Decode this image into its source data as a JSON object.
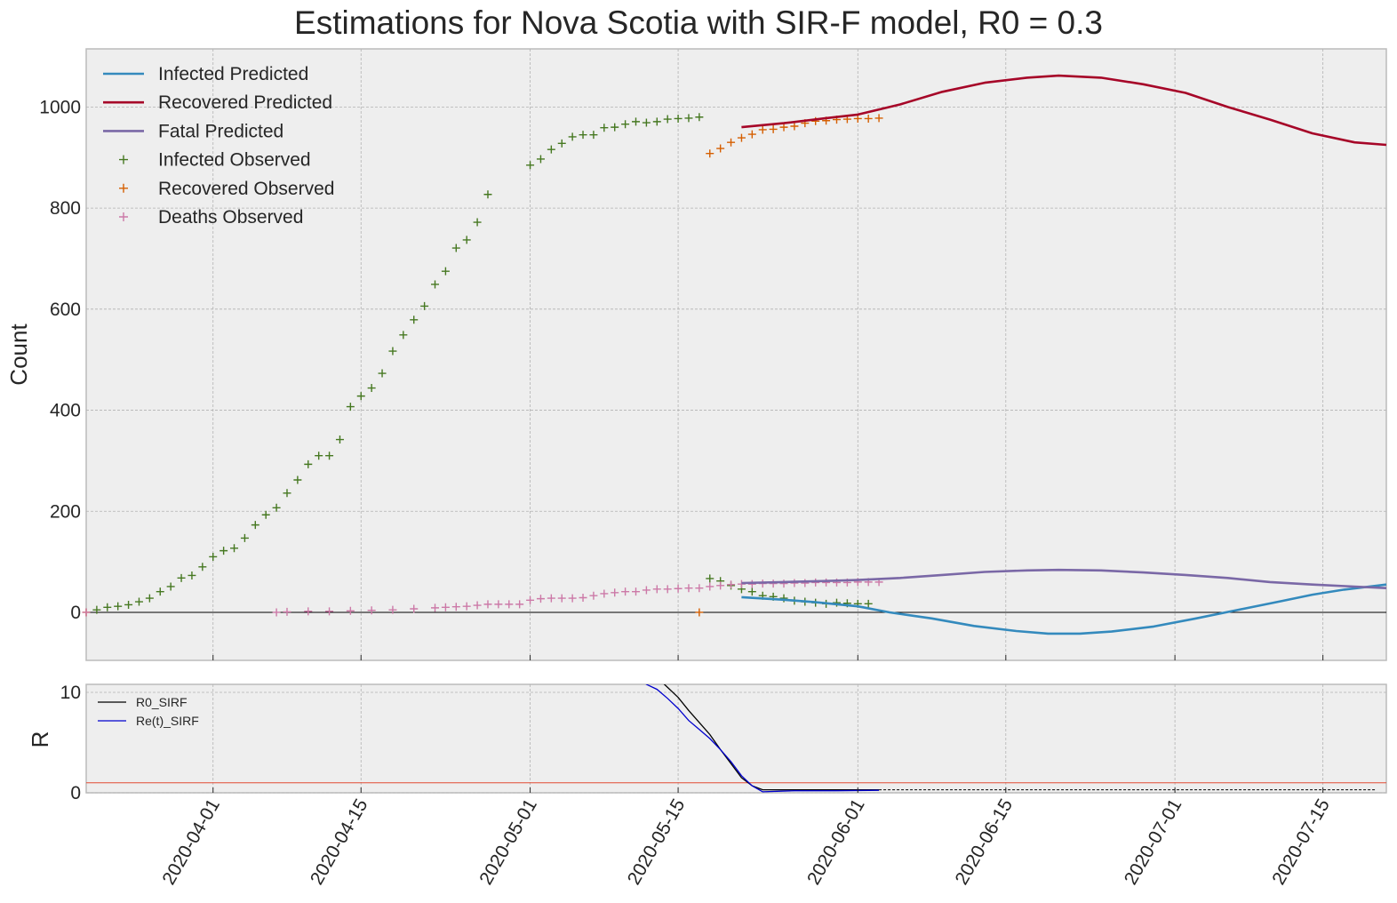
{
  "chart_data": [
    {
      "type": "line",
      "title": "Estimations for Nova Scotia with SIR-F model, R0 = 0.3",
      "ylabel": "Count",
      "ylim": [
        -95,
        1115
      ],
      "yticks": [
        0,
        200,
        400,
        600,
        800,
        1000
      ],
      "x_date_range": [
        "2020-03-20",
        "2020-07-21"
      ],
      "xticks": [
        "2020-04-01",
        "2020-04-15",
        "2020-05-01",
        "2020-05-15",
        "2020-06-01",
        "2020-06-15",
        "2020-07-01",
        "2020-07-15"
      ],
      "grid": true,
      "legend_position": "upper-left",
      "series": [
        {
          "name": "Infected Predicted",
          "kind": "line",
          "color": "#348ABD",
          "points": [
            [
              "2020-05-21",
              30
            ],
            [
              "2020-05-25",
              25
            ],
            [
              "2020-05-28",
              20
            ],
            [
              "2020-06-01",
              12
            ],
            [
              "2020-06-04",
              0
            ],
            [
              "2020-06-08",
              -12
            ],
            [
              "2020-06-12",
              -27
            ],
            [
              "2020-06-16",
              -37
            ],
            [
              "2020-06-19",
              -42
            ],
            [
              "2020-06-22",
              -42
            ],
            [
              "2020-06-25",
              -38
            ],
            [
              "2020-06-29",
              -28
            ],
            [
              "2020-07-03",
              -12
            ],
            [
              "2020-07-07",
              5
            ],
            [
              "2020-07-11",
              22
            ],
            [
              "2020-07-14",
              35
            ],
            [
              "2020-07-17",
              45
            ],
            [
              "2020-07-21",
              55
            ]
          ]
        },
        {
          "name": "Recovered Predicted",
          "kind": "line",
          "color": "#A60628",
          "points": [
            [
              "2020-05-21",
              960
            ],
            [
              "2020-05-25",
              968
            ],
            [
              "2020-05-29",
              978
            ],
            [
              "2020-06-01",
              985
            ],
            [
              "2020-06-05",
              1005
            ],
            [
              "2020-06-09",
              1030
            ],
            [
              "2020-06-13",
              1048
            ],
            [
              "2020-06-17",
              1058
            ],
            [
              "2020-06-20",
              1062
            ],
            [
              "2020-06-24",
              1058
            ],
            [
              "2020-06-28",
              1045
            ],
            [
              "2020-07-02",
              1028
            ],
            [
              "2020-07-06",
              1000
            ],
            [
              "2020-07-10",
              975
            ],
            [
              "2020-07-14",
              948
            ],
            [
              "2020-07-18",
              930
            ],
            [
              "2020-07-21",
              925
            ]
          ]
        },
        {
          "name": "Fatal Predicted",
          "kind": "line",
          "color": "#7A68A6",
          "points": [
            [
              "2020-05-21",
              58
            ],
            [
              "2020-05-25",
              60
            ],
            [
              "2020-05-29",
              62
            ],
            [
              "2020-06-01",
              64
            ],
            [
              "2020-06-05",
              68
            ],
            [
              "2020-06-09",
              74
            ],
            [
              "2020-06-13",
              80
            ],
            [
              "2020-06-17",
              83
            ],
            [
              "2020-06-20",
              84
            ],
            [
              "2020-06-24",
              83
            ],
            [
              "2020-06-28",
              79
            ],
            [
              "2020-07-02",
              74
            ],
            [
              "2020-07-06",
              68
            ],
            [
              "2020-07-10",
              60
            ],
            [
              "2020-07-14",
              55
            ],
            [
              "2020-07-18",
              51
            ],
            [
              "2020-07-21",
              48
            ]
          ]
        },
        {
          "name": "Infected Observed",
          "kind": "scatter",
          "color": "#467821",
          "points": [
            [
              "2020-03-21",
              5
            ],
            [
              "2020-03-22",
              10
            ],
            [
              "2020-03-23",
              12
            ],
            [
              "2020-03-24",
              15
            ],
            [
              "2020-03-25",
              21
            ],
            [
              "2020-03-26",
              28
            ],
            [
              "2020-03-27",
              41
            ],
            [
              "2020-03-28",
              51
            ],
            [
              "2020-03-29",
              68
            ],
            [
              "2020-03-30",
              73
            ],
            [
              "2020-03-31",
              90
            ],
            [
              "2020-04-01",
              110
            ],
            [
              "2020-04-02",
              122
            ],
            [
              "2020-04-03",
              127
            ],
            [
              "2020-04-04",
              147
            ],
            [
              "2020-04-05",
              173
            ],
            [
              "2020-04-06",
              193
            ],
            [
              "2020-04-07",
              207
            ],
            [
              "2020-04-08",
              236
            ],
            [
              "2020-04-09",
              262
            ],
            [
              "2020-04-10",
              293
            ],
            [
              "2020-04-11",
              310
            ],
            [
              "2020-04-12",
              310
            ],
            [
              "2020-04-13",
              342
            ],
            [
              "2020-04-14",
              407
            ],
            [
              "2020-04-15",
              428
            ],
            [
              "2020-04-16",
              444
            ],
            [
              "2020-04-17",
              473
            ],
            [
              "2020-04-18",
              517
            ],
            [
              "2020-04-19",
              549
            ],
            [
              "2020-04-20",
              579
            ],
            [
              "2020-04-21",
              606
            ],
            [
              "2020-04-22",
              649
            ],
            [
              "2020-04-23",
              675
            ],
            [
              "2020-04-24",
              721
            ],
            [
              "2020-04-25",
              737
            ],
            [
              "2020-04-26",
              772
            ],
            [
              "2020-04-27",
              827
            ],
            [
              "2020-05-01",
              885
            ],
            [
              "2020-05-02",
              897
            ],
            [
              "2020-05-03",
              916
            ],
            [
              "2020-05-04",
              928
            ],
            [
              "2020-05-05",
              941
            ],
            [
              "2020-05-06",
              945
            ],
            [
              "2020-05-07",
              945
            ],
            [
              "2020-05-08",
              959
            ],
            [
              "2020-05-09",
              960
            ],
            [
              "2020-05-10",
              966
            ],
            [
              "2020-05-11",
              971
            ],
            [
              "2020-05-12",
              969
            ],
            [
              "2020-05-13",
              971
            ],
            [
              "2020-05-14",
              976
            ],
            [
              "2020-05-15",
              977
            ],
            [
              "2020-05-16",
              978
            ],
            [
              "2020-05-17",
              980
            ],
            [
              "2020-05-18",
              67
            ],
            [
              "2020-05-19",
              62
            ],
            [
              "2020-05-20",
              53
            ],
            [
              "2020-05-21",
              46
            ],
            [
              "2020-05-22",
              41
            ],
            [
              "2020-05-23",
              33
            ],
            [
              "2020-05-24",
              31
            ],
            [
              "2020-05-25",
              28
            ],
            [
              "2020-05-26",
              23
            ],
            [
              "2020-05-27",
              21
            ],
            [
              "2020-05-28",
              19
            ],
            [
              "2020-05-29",
              17
            ],
            [
              "2020-05-30",
              19
            ],
            [
              "2020-05-31",
              18
            ],
            [
              "2020-06-01",
              17
            ],
            [
              "2020-06-02",
              17
            ]
          ]
        },
        {
          "name": "Recovered Observed",
          "kind": "scatter",
          "color": "#D55E00",
          "points": [
            [
              "2020-03-20",
              0
            ],
            [
              "2020-05-17",
              0
            ],
            [
              "2020-05-18",
              908
            ],
            [
              "2020-05-19",
              918
            ],
            [
              "2020-05-20",
              930
            ],
            [
              "2020-05-21",
              939
            ],
            [
              "2020-05-22",
              946
            ],
            [
              "2020-05-23",
              955
            ],
            [
              "2020-05-24",
              956
            ],
            [
              "2020-05-25",
              960
            ],
            [
              "2020-05-26",
              962
            ],
            [
              "2020-05-27",
              968
            ],
            [
              "2020-05-28",
              972
            ],
            [
              "2020-05-29",
              973
            ],
            [
              "2020-05-30",
              975
            ],
            [
              "2020-05-31",
              976
            ],
            [
              "2020-06-01",
              977
            ],
            [
              "2020-06-02",
              977
            ],
            [
              "2020-06-03",
              978
            ]
          ]
        },
        {
          "name": "Deaths Observed",
          "kind": "scatter",
          "color": "#CC79A7",
          "points": [
            [
              "2020-03-20",
              0
            ],
            [
              "2020-04-07",
              0
            ],
            [
              "2020-04-08",
              1
            ],
            [
              "2020-04-10",
              2
            ],
            [
              "2020-04-12",
              2
            ],
            [
              "2020-04-14",
              3
            ],
            [
              "2020-04-16",
              4
            ],
            [
              "2020-04-18",
              5
            ],
            [
              "2020-04-20",
              7
            ],
            [
              "2020-04-22",
              9
            ],
            [
              "2020-04-23",
              10
            ],
            [
              "2020-04-24",
              11
            ],
            [
              "2020-04-25",
              12
            ],
            [
              "2020-04-26",
              14
            ],
            [
              "2020-04-27",
              16
            ],
            [
              "2020-04-28",
              16
            ],
            [
              "2020-04-29",
              16
            ],
            [
              "2020-04-30",
              16
            ],
            [
              "2020-05-01",
              24
            ],
            [
              "2020-05-02",
              27
            ],
            [
              "2020-05-03",
              28
            ],
            [
              "2020-05-04",
              28
            ],
            [
              "2020-05-05",
              28
            ],
            [
              "2020-05-06",
              29
            ],
            [
              "2020-05-07",
              33
            ],
            [
              "2020-05-08",
              37
            ],
            [
              "2020-05-09",
              39
            ],
            [
              "2020-05-10",
              41
            ],
            [
              "2020-05-11",
              41
            ],
            [
              "2020-05-12",
              44
            ],
            [
              "2020-05-13",
              46
            ],
            [
              "2020-05-14",
              46
            ],
            [
              "2020-05-15",
              47
            ],
            [
              "2020-05-16",
              48
            ],
            [
              "2020-05-17",
              48
            ],
            [
              "2020-05-18",
              51
            ],
            [
              "2020-05-19",
              53
            ],
            [
              "2020-05-20",
              55
            ],
            [
              "2020-05-21",
              56
            ],
            [
              "2020-05-22",
              56
            ],
            [
              "2020-05-23",
              57
            ],
            [
              "2020-05-24",
              57
            ],
            [
              "2020-05-25",
              57
            ],
            [
              "2020-05-26",
              58
            ],
            [
              "2020-05-27",
              58
            ],
            [
              "2020-05-28",
              59
            ],
            [
              "2020-05-29",
              59
            ],
            [
              "2020-05-30",
              59
            ],
            [
              "2020-05-31",
              59
            ],
            [
              "2020-06-01",
              60
            ],
            [
              "2020-06-02",
              60
            ],
            [
              "2020-06-03",
              60
            ]
          ]
        }
      ]
    },
    {
      "type": "line",
      "ylabel": "R",
      "ylim": [
        0,
        10.8
      ],
      "yticks": [
        0,
        10
      ],
      "x_date_range": [
        "2020-03-20",
        "2020-07-21"
      ],
      "xticks": [
        "2020-04-01",
        "2020-04-15",
        "2020-05-01",
        "2020-05-15",
        "2020-06-01",
        "2020-06-15",
        "2020-07-01",
        "2020-07-15"
      ],
      "grid": true,
      "legend_position": "upper-left",
      "reference_line": {
        "value": 1,
        "color": "#E24A33"
      },
      "series": [
        {
          "name": "R0_SIRF",
          "kind": "line",
          "color": "#000000",
          "points": [
            [
              "2020-05-13",
              11.5
            ],
            [
              "2020-05-14",
              10.5
            ],
            [
              "2020-05-15",
              9.5
            ],
            [
              "2020-05-16",
              8.2
            ],
            [
              "2020-05-17",
              7.0
            ],
            [
              "2020-05-18",
              5.8
            ],
            [
              "2020-05-19",
              4.3
            ],
            [
              "2020-05-20",
              2.9
            ],
            [
              "2020-05-21",
              1.5
            ],
            [
              "2020-05-22",
              0.7
            ],
            [
              "2020-05-23",
              0.3
            ],
            [
              "2020-05-26",
              0.3
            ],
            [
              "2020-05-30",
              0.3
            ],
            [
              "2020-06-03",
              0.3
            ]
          ],
          "projection": {
            "style": "dashed",
            "value": 0.3,
            "from": "2020-06-03",
            "to": "2020-07-20"
          }
        },
        {
          "name": "Re(t)_SIRF",
          "kind": "line",
          "color": "#0000CD",
          "points": [
            [
              "2020-05-11",
              12.0
            ],
            [
              "2020-05-12",
              10.8
            ],
            [
              "2020-05-13",
              10.3
            ],
            [
              "2020-05-14",
              9.4
            ],
            [
              "2020-05-15",
              8.4
            ],
            [
              "2020-05-16",
              7.2
            ],
            [
              "2020-05-17",
              6.3
            ],
            [
              "2020-05-18",
              5.4
            ],
            [
              "2020-05-19",
              4.3
            ],
            [
              "2020-05-20",
              3.1
            ],
            [
              "2020-05-21",
              1.7
            ],
            [
              "2020-05-22",
              0.7
            ],
            [
              "2020-05-23",
              0.1
            ],
            [
              "2020-05-26",
              0.2
            ],
            [
              "2020-05-30",
              0.2
            ],
            [
              "2020-06-03",
              0.25
            ]
          ]
        }
      ]
    }
  ]
}
